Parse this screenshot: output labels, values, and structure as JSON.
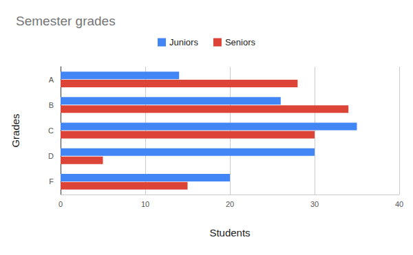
{
  "chart_data": {
    "type": "bar",
    "title": "Semester grades",
    "orientation": "horizontal",
    "categories": [
      "A",
      "B",
      "C",
      "D",
      "F"
    ],
    "series": [
      {
        "name": "Juniors",
        "color": "#4285f4",
        "values": [
          14,
          26,
          35,
          30,
          20
        ]
      },
      {
        "name": "Seniors",
        "color": "#db4437",
        "values": [
          28,
          34,
          30,
          5,
          15
        ]
      }
    ],
    "xlabel": "Students",
    "ylabel": "Grades",
    "xlim": [
      0,
      40
    ],
    "xticks": [
      0,
      10,
      20,
      30,
      40
    ],
    "grid": true,
    "legend": "top"
  }
}
